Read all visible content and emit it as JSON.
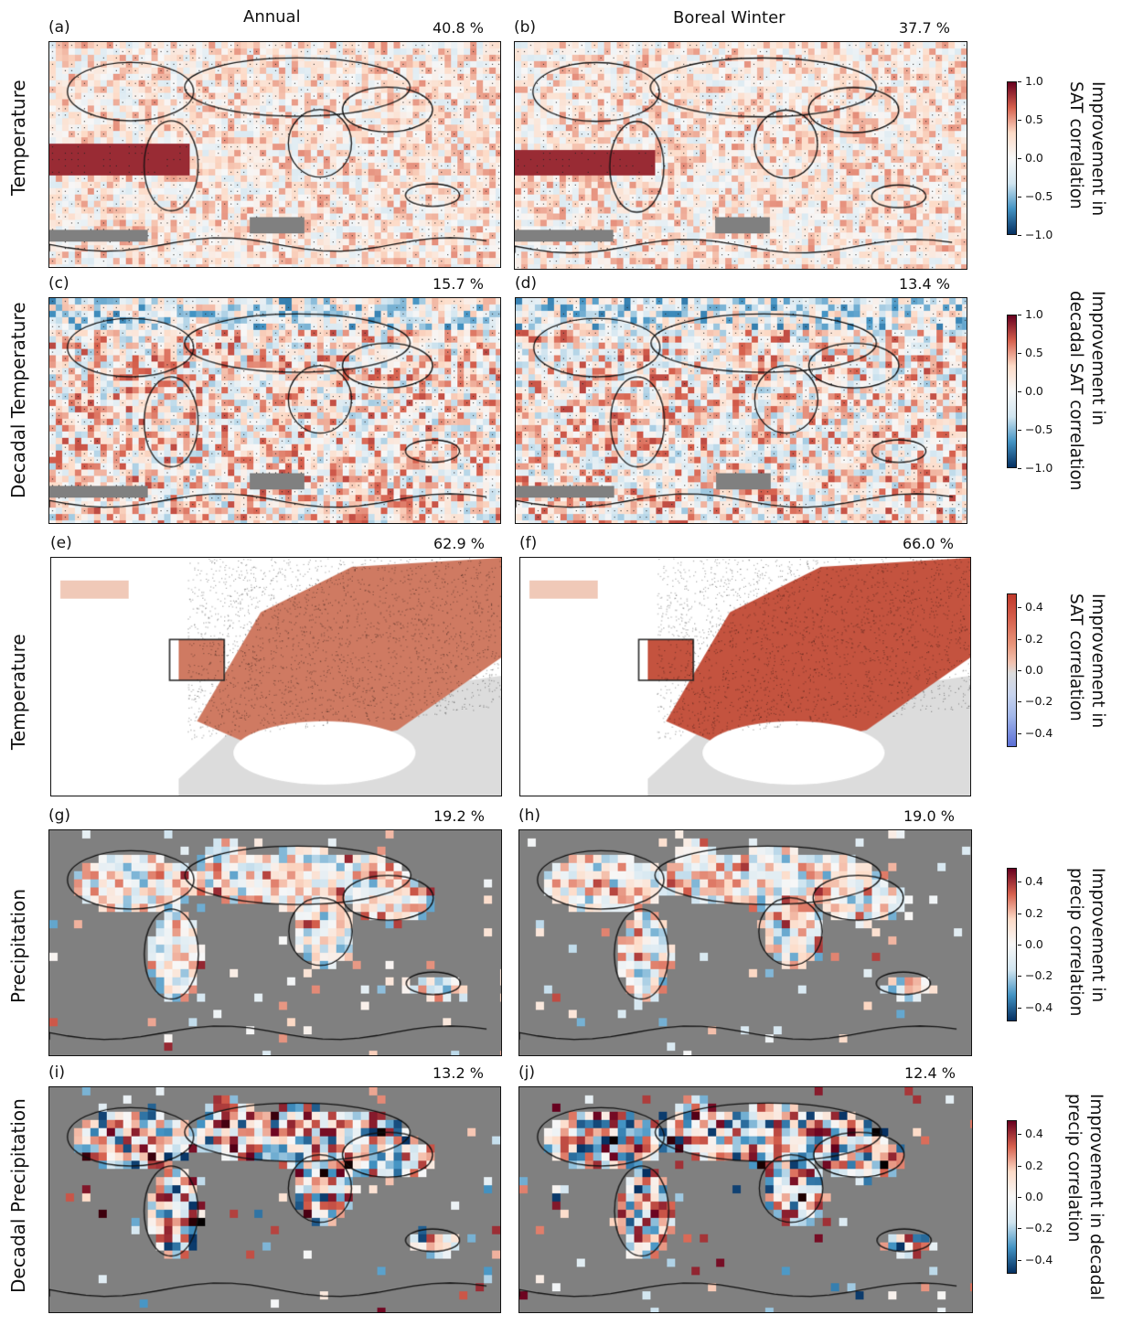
{
  "columns": {
    "annual": "Annual",
    "winter": "Boreal Winter"
  },
  "rows": [
    {
      "label": "Temperature",
      "colorbar_label": [
        "Improvement in",
        "SAT correlation"
      ],
      "ticks": [
        "1.0",
        "0.5",
        "0.0",
        "−0.5",
        "−1.0"
      ],
      "cmap": "RdBu_r"
    },
    {
      "label": "Decadal Temperature",
      "colorbar_label": [
        "Improvement in",
        "decadal SAT correlation"
      ],
      "ticks": [
        "1.0",
        "0.5",
        "0.0",
        "−0.5",
        "−1.0"
      ],
      "cmap": "RdBu_r"
    },
    {
      "label": "Temperature",
      "colorbar_label": [
        "Improvement in",
        "SAT correlation"
      ],
      "ticks": [
        "0.4",
        "0.2",
        "0.0",
        "−0.2",
        "−0.4"
      ],
      "cmap": "coolwarm"
    },
    {
      "label": "Precipitation",
      "colorbar_label": [
        "Improvement in",
        "precip correlation"
      ],
      "ticks": [
        "0.4",
        "0.2",
        "0.0",
        "−0.2",
        "−0.4"
      ],
      "cmap": "RdBu_r"
    },
    {
      "label": "Decadal Precipitation",
      "colorbar_label": [
        "Improvement in decadal",
        "precip correlation"
      ],
      "ticks": [
        "0.4",
        "0.2",
        "0.0",
        "−0.2",
        "−0.4"
      ],
      "cmap": "RdBu_r"
    }
  ],
  "panels": [
    {
      "id": "(a)",
      "percent": "40.8 %"
    },
    {
      "id": "(b)",
      "percent": "37.7 %"
    },
    {
      "id": "(c)",
      "percent": "15.7 %"
    },
    {
      "id": "(d)",
      "percent": "13.4 %"
    },
    {
      "id": "(e)",
      "percent": "62.9 %"
    },
    {
      "id": "(f)",
      "percent": "66.0 %"
    },
    {
      "id": "(g)",
      "percent": "19.2 %"
    },
    {
      "id": "(h)",
      "percent": "19.0 %"
    },
    {
      "id": "(i)",
      "percent": "13.2 %"
    },
    {
      "id": "(j)",
      "percent": "12.4 %"
    }
  ]
}
